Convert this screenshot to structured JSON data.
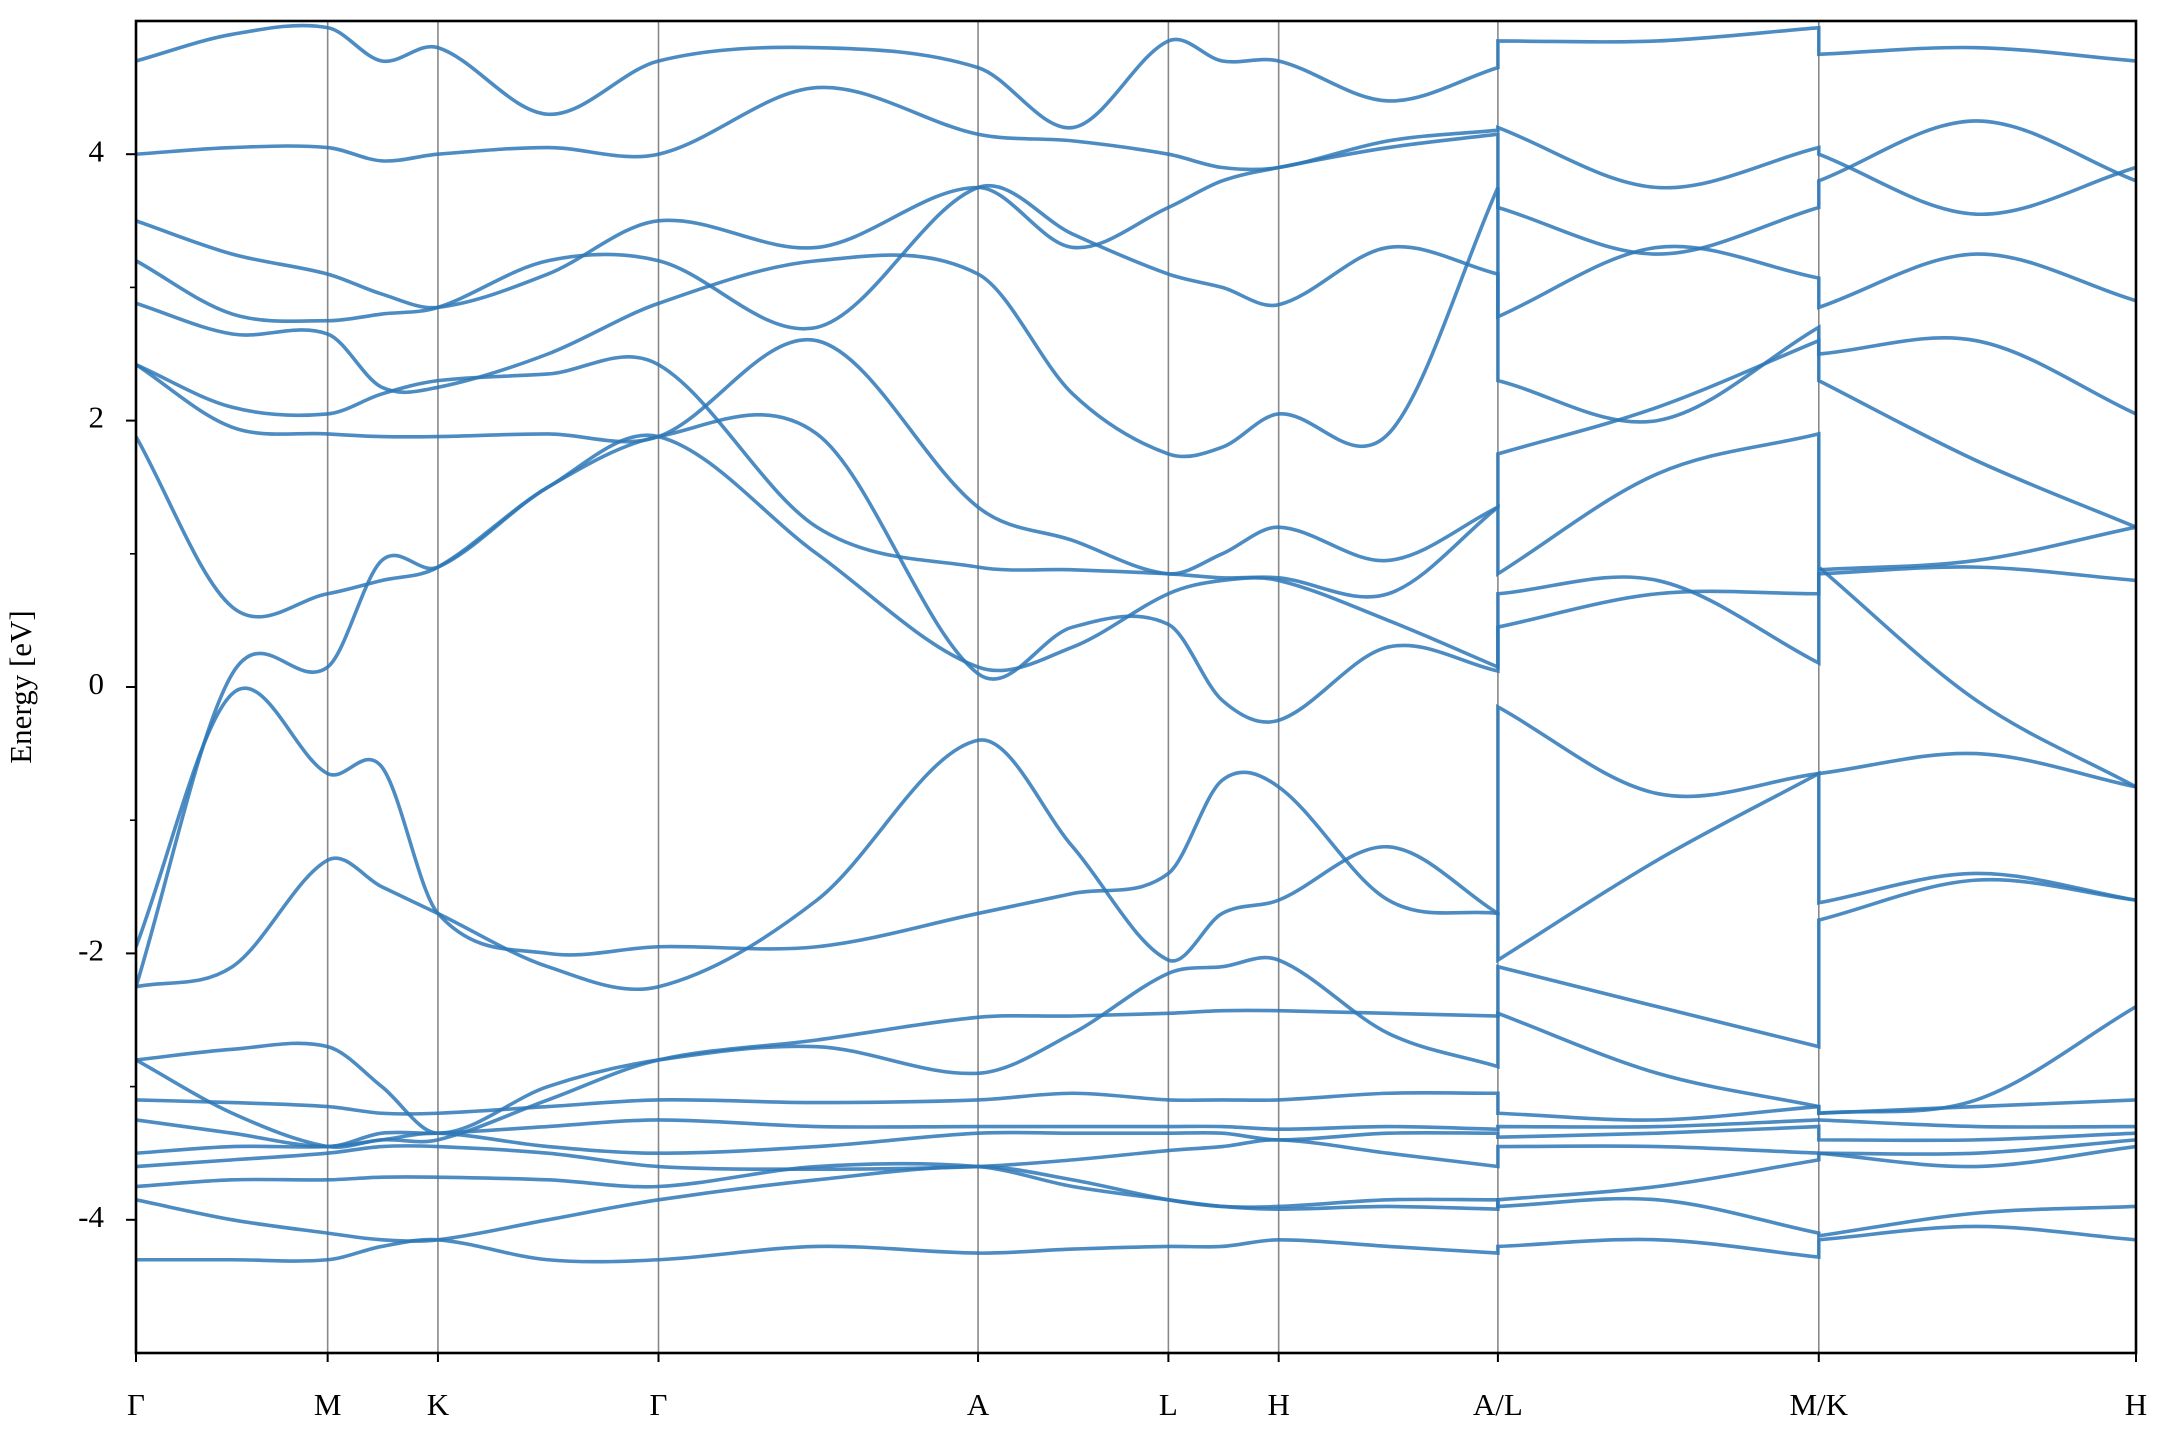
{
  "chart_data": {
    "type": "line",
    "ylabel": "Energy [eV]",
    "color": "#2e78b7",
    "x": [
      0,
      0.29,
      0.577,
      0.74,
      0.909,
      1.24,
      1.573,
      2.05,
      2.535,
      2.82,
      3.108,
      3.27,
      3.44,
      3.77,
      4.1,
      4.1,
      4.58,
      5.066,
      5.066,
      5.54,
      6.021
    ],
    "xlim": [
      0,
      6.021
    ],
    "xticks": [
      {
        "value": 0,
        "label": "Γ"
      },
      {
        "value": 0.577,
        "label": "M"
      },
      {
        "value": 0.909,
        "label": "K"
      },
      {
        "value": 1.573,
        "label": "Γ"
      },
      {
        "value": 2.535,
        "label": "A"
      },
      {
        "value": 3.108,
        "label": "L"
      },
      {
        "value": 3.44,
        "label": "H"
      },
      {
        "value": 4.1,
        "label": "A/L"
      },
      {
        "value": 5.066,
        "label": "M/K"
      },
      {
        "value": 6.021,
        "label": "H"
      }
    ],
    "xgrid": true,
    "ylim": [
      -5,
      5
    ],
    "yticks": [
      -4,
      -2,
      0,
      2,
      4
    ],
    "yminor_ticks": [
      -3,
      -1,
      1,
      3
    ],
    "series": [
      {
        "values": [
          -4.3,
          -4.3,
          -4.3,
          -4.2,
          -4.15,
          -4.3,
          -4.3,
          -4.2,
          -4.25,
          -4.22,
          -4.2,
          -4.2,
          -4.15,
          -4.2,
          -4.25,
          -4.2,
          -4.15,
          -4.28,
          -4.15,
          -4.05,
          -4.15
        ]
      },
      {
        "values": [
          -3.85,
          -4.0,
          -4.1,
          -4.15,
          -4.15,
          -4.0,
          -3.85,
          -3.7,
          -3.6,
          -3.7,
          -3.85,
          -3.9,
          -3.9,
          -3.85,
          -3.85,
          -3.9,
          -3.85,
          -4.1,
          -4.12,
          -3.95,
          -3.9
        ]
      },
      {
        "values": [
          -3.75,
          -3.7,
          -3.7,
          -3.68,
          -3.68,
          -3.7,
          -3.75,
          -3.6,
          -3.6,
          -3.75,
          -3.85,
          -3.9,
          -3.92,
          -3.9,
          -3.92,
          -3.85,
          -3.75,
          -3.55,
          -3.5,
          -3.5,
          -3.4
        ]
      },
      {
        "values": [
          -3.6,
          -3.55,
          -3.5,
          -3.45,
          -3.45,
          -3.5,
          -3.6,
          -3.62,
          -3.6,
          -3.55,
          -3.48,
          -3.45,
          -3.4,
          -3.5,
          -3.6,
          -3.45,
          -3.45,
          -3.5,
          -3.5,
          -3.6,
          -3.45
        ]
      },
      {
        "values": [
          -3.5,
          -3.45,
          -3.45,
          -3.4,
          -3.35,
          -3.45,
          -3.5,
          -3.45,
          -3.35,
          -3.35,
          -3.35,
          -3.35,
          -3.4,
          -3.35,
          -3.35,
          -3.38,
          -3.35,
          -3.3,
          -3.4,
          -3.4,
          -3.35
        ]
      },
      {
        "values": [
          -3.25,
          -3.35,
          -3.45,
          -3.35,
          -3.35,
          -3.3,
          -3.25,
          -3.3,
          -3.3,
          -3.3,
          -3.3,
          -3.3,
          -3.32,
          -3.3,
          -3.32,
          -3.3,
          -3.3,
          -3.25,
          -3.25,
          -3.3,
          -3.3
        ]
      },
      {
        "values": [
          -3.1,
          -3.12,
          -3.15,
          -3.2,
          -3.2,
          -3.15,
          -3.1,
          -3.12,
          -3.1,
          -3.05,
          -3.1,
          -3.1,
          -3.1,
          -3.05,
          -3.05,
          -3.2,
          -3.25,
          -3.15,
          -3.2,
          -3.15,
          -3.1
        ]
      },
      {
        "values": [
          -2.8,
          -3.2,
          -3.45,
          -3.4,
          -3.4,
          -3.1,
          -2.8,
          -2.65,
          -2.48,
          -2.47,
          -2.45,
          -2.43,
          -2.43,
          -2.45,
          -2.47,
          -2.45,
          -2.9,
          -3.15,
          -3.2,
          -3.1,
          -2.4
        ]
      },
      {
        "values": [
          -2.8,
          -2.72,
          -2.7,
          -3.0,
          -3.35,
          -3.0,
          -2.8,
          -2.7,
          -2.9,
          -2.6,
          -2.15,
          -2.1,
          -2.05,
          -2.6,
          -2.85,
          -2.1,
          -2.4,
          -2.7,
          -1.75,
          -1.45,
          -1.6
        ]
      },
      {
        "values": [
          -2.25,
          -2.1,
          -1.3,
          -1.5,
          -1.7,
          -2.1,
          -2.25,
          -1.6,
          -0.4,
          -1.2,
          -2.05,
          -1.7,
          -1.6,
          -1.2,
          -1.7,
          -2.05,
          -1.3,
          -0.65,
          -1.62,
          -1.4,
          -1.6
        ]
      },
      {
        "values": [
          -1.95,
          -0.05,
          -0.65,
          -0.6,
          -1.7,
          -2.0,
          -1.95,
          -1.95,
          -1.7,
          -1.55,
          -1.4,
          -0.7,
          -0.75,
          -1.6,
          -1.7,
          -0.15,
          -0.8,
          -0.65,
          -0.65,
          -0.5,
          -0.75
        ]
      },
      {
        "values": [
          -2.25,
          0.1,
          0.15,
          0.95,
          0.9,
          1.5,
          1.88,
          1.0,
          0.15,
          0.3,
          0.7,
          0.8,
          0.8,
          0.5,
          0.15,
          0.45,
          0.7,
          0.7,
          0.85,
          0.9,
          0.8
        ]
      },
      {
        "values": [
          1.88,
          0.6,
          0.7,
          0.8,
          0.9,
          1.5,
          1.88,
          1.9,
          0.1,
          0.45,
          0.47,
          -0.1,
          -0.25,
          0.3,
          0.12,
          0.7,
          0.8,
          0.18,
          0.88,
          0.95,
          1.2
        ]
      },
      {
        "values": [
          2.42,
          2.1,
          2.05,
          2.2,
          2.3,
          2.35,
          2.42,
          1.2,
          0.9,
          0.88,
          0.85,
          0.82,
          0.82,
          0.7,
          1.35,
          0.85,
          1.6,
          1.9,
          0.9,
          -0.1,
          -0.75
        ]
      },
      {
        "values": [
          2.42,
          1.95,
          1.9,
          1.88,
          1.88,
          1.9,
          1.88,
          2.6,
          1.35,
          1.1,
          0.85,
          1.0,
          1.2,
          0.95,
          1.35,
          1.75,
          2.1,
          2.6,
          2.3,
          1.7,
          1.2
        ]
      },
      {
        "values": [
          2.88,
          2.65,
          2.65,
          2.25,
          2.25,
          2.5,
          2.88,
          3.2,
          3.1,
          2.2,
          1.75,
          1.8,
          2.05,
          1.9,
          3.75,
          2.3,
          2.0,
          2.7,
          2.5,
          2.6,
          2.05
        ]
      },
      {
        "values": [
          3.2,
          2.8,
          2.75,
          2.8,
          2.85,
          3.2,
          3.2,
          2.7,
          3.75,
          3.4,
          3.1,
          3.0,
          2.87,
          3.3,
          3.1,
          2.78,
          3.3,
          3.07,
          2.85,
          3.25,
          2.9
        ]
      },
      {
        "values": [
          3.5,
          3.25,
          3.1,
          2.95,
          2.85,
          3.1,
          3.5,
          3.3,
          3.75,
          3.3,
          3.6,
          3.8,
          3.9,
          4.05,
          4.15,
          3.6,
          3.25,
          3.6,
          3.8,
          4.25,
          3.8
        ]
      },
      {
        "values": [
          4.0,
          4.05,
          4.05,
          3.95,
          4.0,
          4.05,
          4.0,
          4.5,
          4.15,
          4.1,
          4.0,
          3.9,
          3.9,
          4.1,
          4.18,
          4.2,
          3.75,
          4.05,
          4.0,
          3.55,
          3.9
        ]
      },
      {
        "values": [
          4.7,
          4.9,
          4.95,
          4.7,
          4.8,
          4.3,
          4.7,
          4.8,
          4.65,
          4.2,
          4.85,
          4.7,
          4.7,
          4.4,
          4.65,
          4.85,
          4.85,
          4.95,
          4.75,
          4.8,
          4.7
        ]
      }
    ]
  }
}
